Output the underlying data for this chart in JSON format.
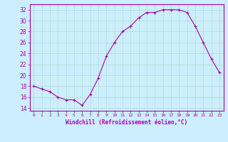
{
  "x": [
    0,
    1,
    2,
    3,
    4,
    5,
    6,
    7,
    8,
    9,
    10,
    11,
    12,
    13,
    14,
    15,
    16,
    17,
    18,
    19,
    20,
    21,
    22,
    23
  ],
  "y": [
    18,
    17.5,
    17,
    16,
    15.5,
    15.5,
    14.5,
    16.5,
    19.5,
    23.5,
    26,
    28,
    29,
    30.5,
    31.5,
    31.5,
    32,
    32,
    32,
    31.5,
    29,
    26,
    23,
    20.5
  ],
  "line_color": "#aa00aa",
  "marker": "+",
  "marker_size": 3,
  "bg_color": "#cceeff",
  "grid_color": "#aaddcc",
  "xlabel": "Windchill (Refroidissement éolien,°C)",
  "xlabel_color": "#aa00aa",
  "tick_color": "#aa00aa",
  "spine_color": "#aa00aa",
  "ylim": [
    13.5,
    33
  ],
  "yticks": [
    14,
    16,
    18,
    20,
    22,
    24,
    26,
    28,
    30,
    32
  ],
  "xticks": [
    0,
    1,
    2,
    3,
    4,
    5,
    6,
    7,
    8,
    9,
    10,
    11,
    12,
    13,
    14,
    15,
    16,
    17,
    18,
    19,
    20,
    21,
    22,
    23
  ],
  "xtick_labels": [
    "0",
    "1",
    "2",
    "3",
    "4",
    "5",
    "6",
    "7",
    "8",
    "9",
    "10",
    "11",
    "12",
    "13",
    "14",
    "15",
    "16",
    "17",
    "18",
    "19",
    "20",
    "21",
    "22",
    "23"
  ]
}
